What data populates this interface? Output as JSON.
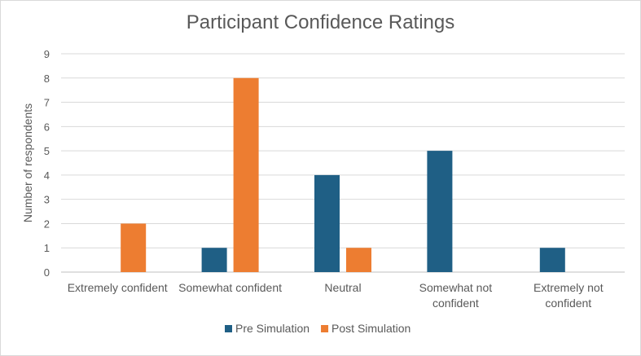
{
  "chart_data": {
    "type": "bar",
    "title": "Participant Confidence Ratings",
    "xlabel": "",
    "ylabel": "Number of respondents",
    "ylim": [
      0,
      9
    ],
    "yticks": [
      "0",
      "1",
      "2",
      "3",
      "4",
      "5",
      "6",
      "7",
      "8",
      "9"
    ],
    "grid": true,
    "legend_position": "bottom",
    "categories": [
      [
        "Extremely confident"
      ],
      [
        "Somewhat confident"
      ],
      [
        "Neutral"
      ],
      [
        "Somewhat not",
        "confident"
      ],
      [
        "Extremely not",
        "confident"
      ]
    ],
    "series": [
      {
        "name": "Pre Simulation",
        "color": "#1f5f85",
        "values": [
          0,
          1,
          4,
          5,
          1
        ]
      },
      {
        "name": "Post Simulation",
        "color": "#ed7d31",
        "values": [
          2,
          8,
          1,
          0,
          0
        ]
      }
    ]
  }
}
